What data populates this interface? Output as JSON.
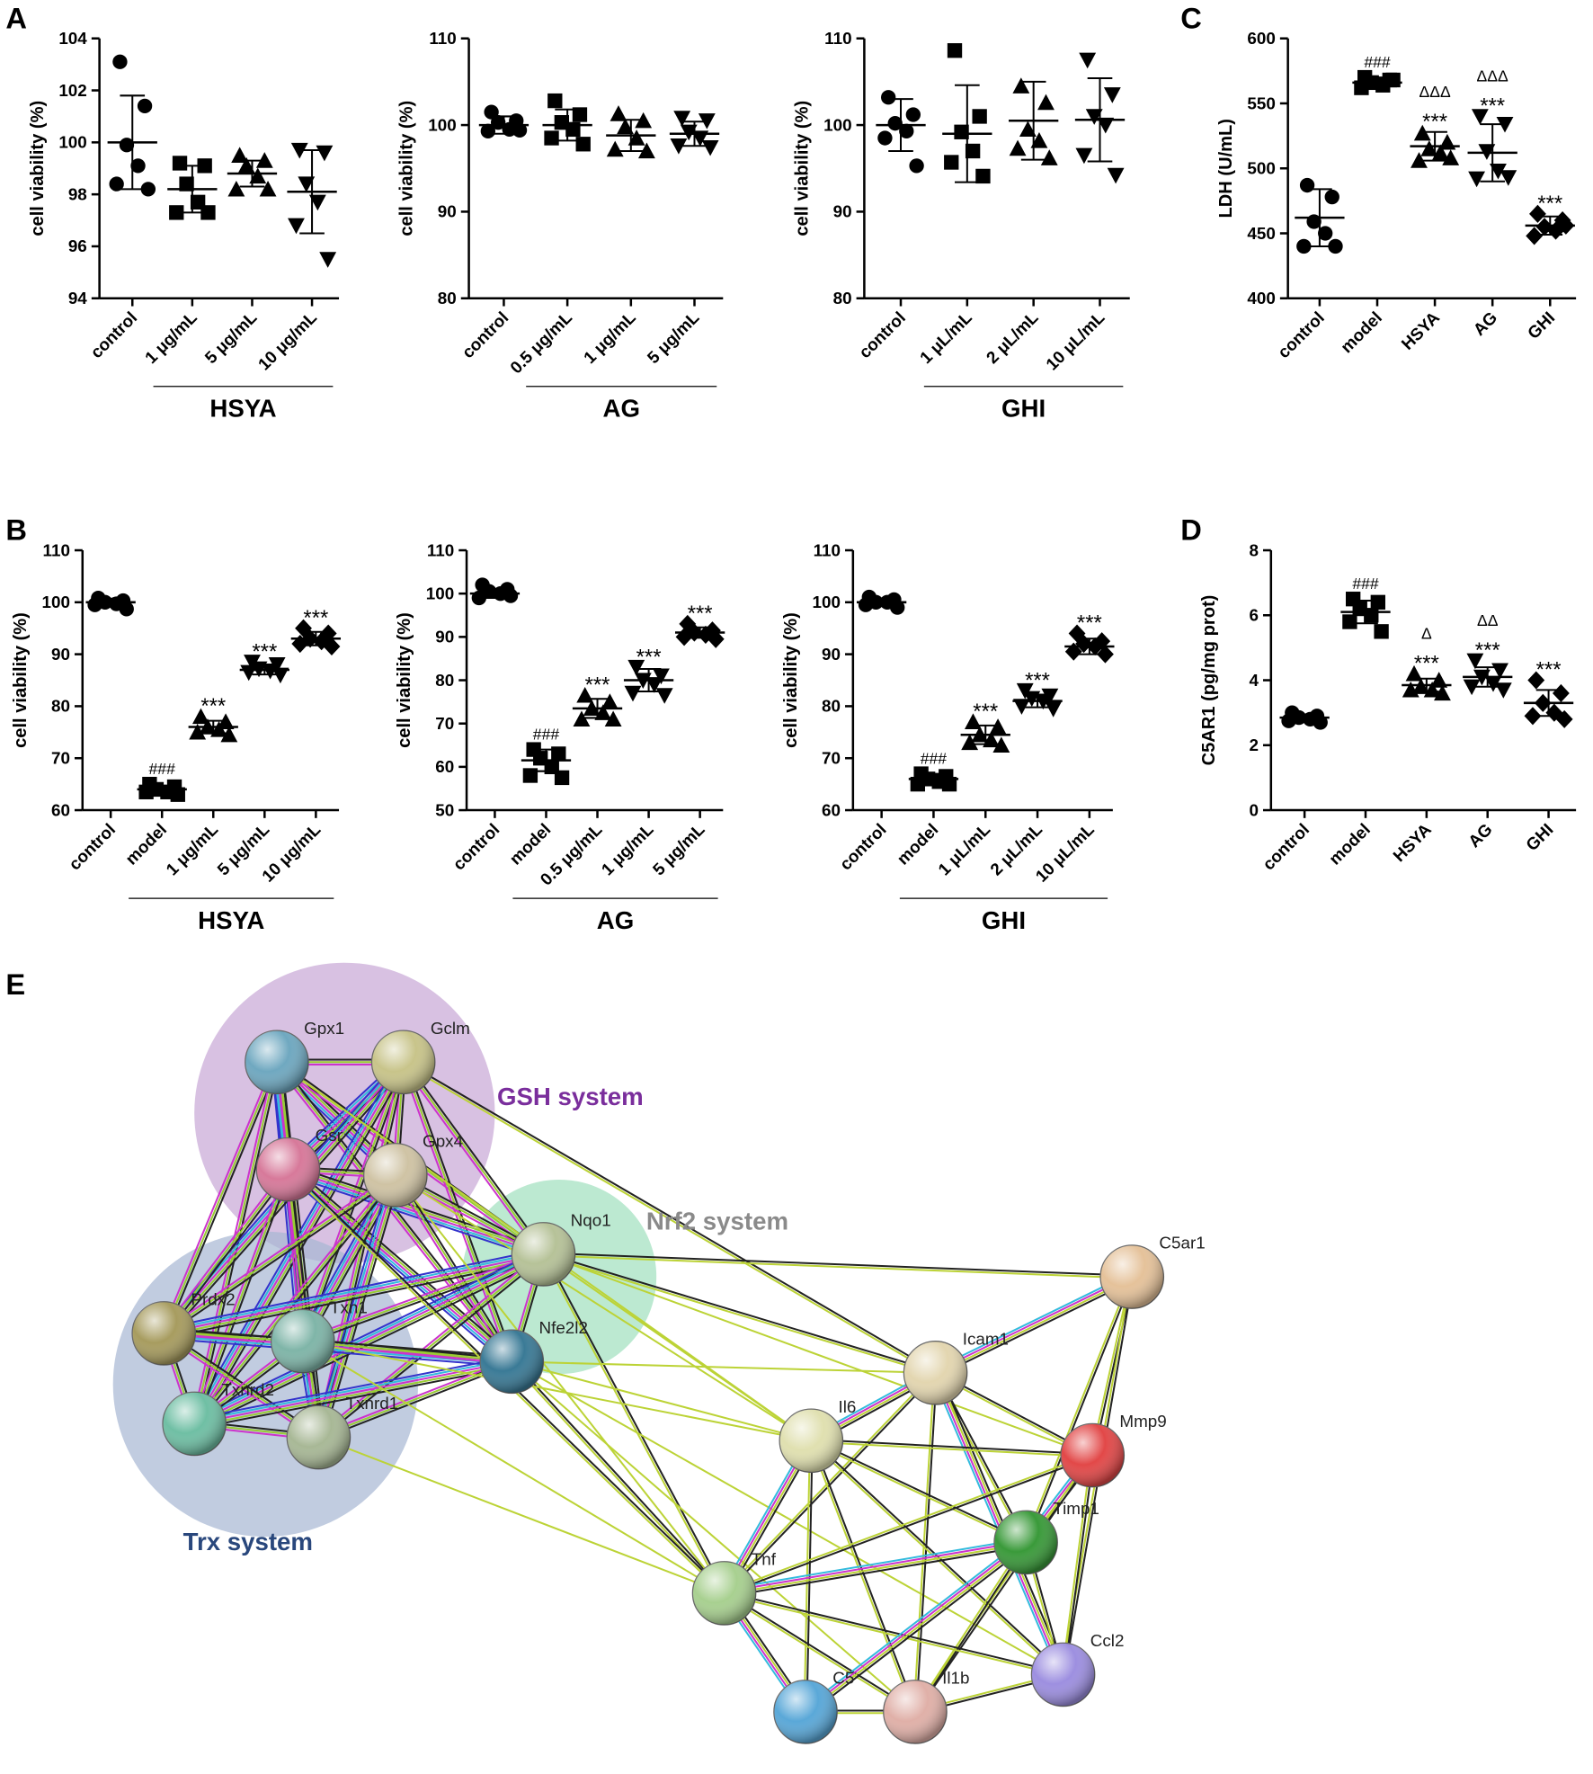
{
  "chart_data": [
    {
      "type": "dot",
      "panel": "A",
      "ylabel": "cell viability (%)",
      "group": "HSYA",
      "categories": [
        "control",
        "1 μg/mL",
        "5 μg/mL",
        "10 μg/mL"
      ],
      "markers": [
        "circle",
        "square",
        "triangle",
        "triangle-down"
      ],
      "points": [
        [
          103.1,
          101.4,
          99.9,
          99.1,
          98.4,
          98.2
        ],
        [
          99.2,
          99.1,
          98.4,
          97.7,
          97.3,
          97.3
        ],
        [
          99.5,
          99.3,
          99.1,
          98.7,
          98.2,
          98.2
        ],
        [
          99.7,
          99.6,
          98.4,
          97.7,
          96.8,
          95.5
        ]
      ],
      "means": [
        100,
        98.2,
        98.8,
        98.1
      ],
      "sds": [
        1.8,
        0.9,
        0.5,
        1.6
      ],
      "annotations": [
        [],
        [],
        [],
        []
      ],
      "ylim": [
        94,
        104
      ],
      "yticks": [
        94,
        96,
        98,
        100,
        102,
        104
      ]
    },
    {
      "type": "dot",
      "ylabel": "cell viability (%)",
      "group": "AG",
      "categories": [
        "control",
        "0.5 μg/mL",
        "1 μg/mL",
        "5 μg/mL"
      ],
      "markers": [
        "circle",
        "square",
        "triangle",
        "triangle-down"
      ],
      "points": [
        [
          101.5,
          100.5,
          100.3,
          99.5,
          99.3,
          99.4
        ],
        [
          102.8,
          101.2,
          100.3,
          99.5,
          98.5,
          97.8
        ],
        [
          101.3,
          100.5,
          99.8,
          98.5,
          97.2,
          97
        ],
        [
          100.8,
          100.5,
          99.2,
          98.5,
          97.6,
          97.4
        ]
      ],
      "means": [
        100,
        100,
        98.8,
        99
      ],
      "sds": [
        1,
        1.8,
        1.8,
        1.4
      ],
      "annotations": [
        [],
        [],
        [],
        []
      ],
      "ylim": [
        80,
        110
      ],
      "yticks": [
        80,
        90,
        100,
        110
      ]
    },
    {
      "type": "dot",
      "ylabel": "cell viability (%)",
      "group": "GHI",
      "categories": [
        "control",
        "1 μL/mL",
        "2 μL/mL",
        "10 μL/mL"
      ],
      "markers": [
        "circle",
        "square",
        "triangle",
        "triangle-down"
      ],
      "points": [
        [
          103.2,
          101.2,
          100.2,
          99.3,
          98.5,
          95.3
        ],
        [
          108.6,
          101,
          99.2,
          97,
          95.7,
          94.1
        ],
        [
          104.5,
          102.6,
          99.5,
          98.2,
          97.3,
          96.2
        ],
        [
          107.5,
          103.5,
          101,
          100,
          96.5,
          94.2
        ]
      ],
      "means": [
        100,
        99,
        100.5,
        100.6
      ],
      "sds": [
        3,
        5.6,
        4.5,
        4.8
      ],
      "annotations": [
        [],
        [],
        [],
        []
      ],
      "ylim": [
        80,
        110
      ],
      "yticks": [
        80,
        90,
        100,
        110
      ]
    },
    {
      "type": "dot",
      "panel": "C",
      "ylabel": "LDH (U/mL)",
      "categories": [
        "control",
        "model",
        "HSYA",
        "AG",
        "GHI"
      ],
      "markers": [
        "circle",
        "square",
        "triangle",
        "triangle-down",
        "diamond"
      ],
      "points": [
        [
          487,
          478,
          459,
          450,
          440,
          440
        ],
        [
          570,
          568,
          566,
          564,
          562,
          568
        ],
        [
          527,
          520,
          515,
          512,
          506,
          508
        ],
        [
          540,
          534,
          513,
          498,
          492,
          493
        ],
        [
          465,
          460,
          455,
          452,
          448,
          456
        ]
      ],
      "means": [
        462,
        566,
        517,
        512,
        456
      ],
      "sds": [
        22,
        4,
        11,
        22,
        7
      ],
      "annotations": [
        [],
        [
          "###"
        ],
        [
          "ΔΔΔ",
          "***"
        ],
        [
          "ΔΔΔ",
          "***"
        ],
        [
          "***"
        ]
      ],
      "ylim": [
        400,
        600
      ],
      "yticks": [
        400,
        450,
        500,
        550,
        600
      ]
    },
    {
      "type": "dot",
      "panel": "B",
      "ylabel": "cell viability (%)",
      "group": "HSYA",
      "categories": [
        "control",
        "model",
        "1 μg/mL",
        "5 μg/mL",
        "10 μg/mL"
      ],
      "markers": [
        "circle",
        "square",
        "triangle",
        "triangle-down",
        "diamond"
      ],
      "points": [
        [
          100.8,
          100.3,
          100,
          99.7,
          99.5,
          98.7
        ],
        [
          65,
          64.5,
          64,
          63.5,
          63.5,
          63
        ],
        [
          78,
          77,
          76,
          75.5,
          75,
          74.5
        ],
        [
          88.5,
          88,
          87.2,
          86.8,
          86.5,
          86
        ],
        [
          95,
          94,
          93,
          92.5,
          92,
          91.5
        ]
      ],
      "means": [
        100,
        64,
        76,
        87,
        93
      ],
      "sds": [
        0.7,
        0.7,
        1.2,
        0.9,
        1.3
      ],
      "annotations": [
        [],
        [
          "###"
        ],
        [
          "***"
        ],
        [
          "***"
        ],
        [
          "***"
        ]
      ],
      "ylim": [
        60,
        110
      ],
      "yticks": [
        60,
        70,
        80,
        90,
        100,
        110
      ]
    },
    {
      "type": "dot",
      "ylabel": "cell viability (%)",
      "group": "AG",
      "categories": [
        "control",
        "model",
        "0.5 μg/mL",
        "1 μg/mL",
        "5 μg/mL"
      ],
      "markers": [
        "circle",
        "square",
        "triangle",
        "triangle-down",
        "diamond"
      ],
      "points": [
        [
          102,
          101,
          100.5,
          100,
          99,
          99.5
        ],
        [
          64,
          63,
          62,
          60,
          58,
          57.5
        ],
        [
          76.5,
          75,
          73.5,
          72.5,
          71,
          71
        ],
        [
          83,
          81,
          80,
          79,
          77,
          76.5
        ],
        [
          93,
          91.5,
          91,
          90.5,
          90,
          89.5
        ]
      ],
      "means": [
        100,
        61.5,
        73.5,
        80,
        91
      ],
      "sds": [
        1,
        2.5,
        2.2,
        2.6,
        1.2
      ],
      "annotations": [
        [],
        [
          "###"
        ],
        [
          "***"
        ],
        [
          "***"
        ],
        [
          "***"
        ]
      ],
      "ylim": [
        50,
        110
      ],
      "yticks": [
        50,
        60,
        70,
        80,
        90,
        100,
        110
      ]
    },
    {
      "type": "dot",
      "ylabel": "cell viability (%)",
      "group": "GHI",
      "categories": [
        "control",
        "model",
        "1 μL/mL",
        "2 μL/mL",
        "10 μL/mL"
      ],
      "markers": [
        "circle",
        "square",
        "triangle",
        "triangle-down",
        "diamond"
      ],
      "points": [
        [
          101,
          100.5,
          100,
          100,
          99.5,
          99
        ],
        [
          67,
          66.5,
          66,
          65.5,
          65,
          65
        ],
        [
          77,
          76,
          74.5,
          73.5,
          73,
          72.5
        ],
        [
          83,
          82,
          81.5,
          81,
          80,
          79.5
        ],
        [
          94,
          92.5,
          92,
          91.5,
          90.5,
          90
        ]
      ],
      "means": [
        100,
        66,
        74.5,
        81,
        91.5
      ],
      "sds": [
        0.7,
        1,
        1.8,
        1.2,
        1.5
      ],
      "annotations": [
        [],
        [
          "###"
        ],
        [
          "***"
        ],
        [
          "***"
        ],
        [
          "***"
        ]
      ],
      "ylim": [
        60,
        110
      ],
      "yticks": [
        60,
        70,
        80,
        90,
        100,
        110
      ]
    },
    {
      "type": "dot",
      "panel": "D",
      "ylabel": "C5AR1 (pg/mg prot)",
      "categories": [
        "control",
        "model",
        "HSYA",
        "AG",
        "GHI"
      ],
      "markers": [
        "circle",
        "square",
        "triangle",
        "triangle-down",
        "diamond"
      ],
      "points": [
        [
          3,
          2.9,
          2.85,
          2.8,
          2.75,
          2.7
        ],
        [
          6.5,
          6.4,
          6.2,
          6,
          5.8,
          5.5
        ],
        [
          4.2,
          4,
          3.8,
          3.7,
          3.7,
          3.6
        ],
        [
          4.6,
          4.3,
          4.1,
          3.9,
          3.8,
          3.7
        ],
        [
          4,
          3.6,
          3.3,
          3,
          2.9,
          2.8
        ]
      ],
      "means": [
        2.85,
        6.1,
        3.85,
        4.1,
        3.3
      ],
      "sds": [
        0.1,
        0.35,
        0.2,
        0.3,
        0.4
      ],
      "annotations": [
        [],
        [
          "###"
        ],
        [
          "Δ",
          "***"
        ],
        [
          "ΔΔ",
          "***"
        ],
        [
          "***"
        ]
      ],
      "ylim": [
        0,
        8
      ],
      "yticks": [
        0,
        2,
        4,
        6,
        8
      ]
    }
  ],
  "network": {
    "panel": "E",
    "clusters": [
      "GSH system",
      "Nrf2 system",
      "Trx system"
    ],
    "nodes": [
      "Gpx1",
      "Gclm",
      "Gsr",
      "Gpx4",
      "Nqo1",
      "Prdx2",
      "Txn1",
      "Nfe2l2",
      "Txnrd2",
      "Txnrd1",
      "C5ar1",
      "Icam1",
      "Il6",
      "Mmp9",
      "Timp1",
      "Tnf",
      "Ccl2",
      "C5",
      "Il1b"
    ]
  }
}
